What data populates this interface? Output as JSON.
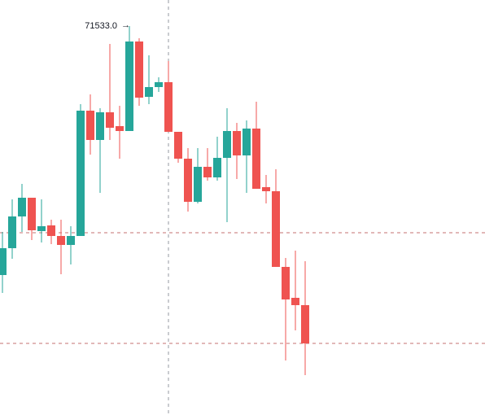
{
  "chart_data": {
    "type": "candlestick",
    "open": [
      68473,
      68803,
      69193,
      69423,
      69013,
      69083,
      68953,
      68843,
      68953,
      70493,
      70133,
      70473,
      70303,
      70243,
      71343,
      70663,
      70783,
      70843,
      70233,
      69903,
      69373,
      69803,
      69673,
      69913,
      70243,
      69943,
      70273,
      69553,
      69503,
      68573,
      68193,
      68103
    ],
    "high": [
      69003,
      69403,
      69593,
      69423,
      69403,
      69153,
      69153,
      69073,
      70573,
      70693,
      70523,
      71313,
      70553,
      71533,
      71383,
      71173,
      70903,
      71103,
      70233,
      70033,
      70033,
      70033,
      70173,
      70523,
      70343,
      70373,
      70603,
      69703,
      69773,
      68683,
      68773,
      68643
    ],
    "low": [
      68253,
      68673,
      69003,
      68903,
      68873,
      68853,
      68483,
      68603,
      68953,
      69953,
      69483,
      70133,
      69903,
      70243,
      70553,
      70573,
      70723,
      70233,
      69853,
      69253,
      69353,
      69633,
      69633,
      69123,
      69653,
      69483,
      69533,
      69353,
      68573,
      67423,
      67793,
      67243
    ],
    "close": [
      68803,
      69193,
      69423,
      69023,
      69073,
      68953,
      68843,
      68953,
      70493,
      70133,
      70473,
      70283,
      70243,
      71343,
      70653,
      70783,
      70843,
      70233,
      69903,
      69373,
      69803,
      69673,
      69913,
      70243,
      69943,
      70273,
      69533,
      69503,
      68573,
      68173,
      68103,
      67633
    ],
    "up_color": "#26a69a",
    "down_color": "#ef5350",
    "ylim": [
      66753,
      71853
    ],
    "high_marker": {
      "value": 71533,
      "label": "71533.0"
    }
  }
}
